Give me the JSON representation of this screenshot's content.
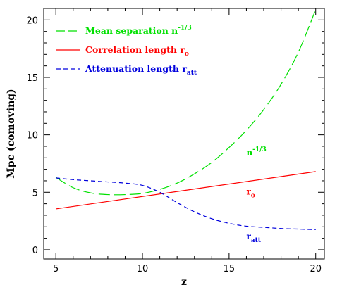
{
  "chart_data": {
    "type": "line",
    "title": "",
    "xlabel": "z",
    "ylabel": "Mpc (comoving)",
    "xlim": [
      4.3,
      20.5
    ],
    "ylim": [
      -0.8,
      21
    ],
    "x_ticks": [
      5,
      10,
      15,
      20
    ],
    "y_ticks": [
      0,
      5,
      10,
      15,
      20
    ],
    "grid": false,
    "legend_position": "top-left",
    "legend": [
      {
        "text": "Mean separation ",
        "sup": "-1/3",
        "prefix": "n",
        "series": 0
      },
      {
        "text": "Correlation length ",
        "prefix": "r",
        "sub": "o",
        "series": 1
      },
      {
        "text": "Attenuation length ",
        "prefix": "r",
        "sub": "att",
        "series": 2
      }
    ],
    "series": [
      {
        "name": "Mean separation n^-1/3",
        "color": "#00e000",
        "dash": "long-dash",
        "x": [
          5,
          6,
          7,
          8,
          9,
          10,
          11,
          12,
          13,
          14,
          15,
          16,
          17,
          18,
          19,
          20
        ],
        "y": [
          6.3,
          5.4,
          4.95,
          4.8,
          4.8,
          4.9,
          5.25,
          5.8,
          6.6,
          7.6,
          8.9,
          10.4,
          12.2,
          14.4,
          17.2,
          20.9
        ]
      },
      {
        "name": "Correlation length r_o",
        "color": "#ff0000",
        "dash": "solid",
        "x": [
          5,
          20
        ],
        "y": [
          3.55,
          6.8
        ]
      },
      {
        "name": "Attenuation length r_att",
        "color": "#0000dd",
        "dash": "short-dash",
        "x": [
          5,
          6,
          7,
          8,
          9,
          10,
          11,
          12,
          13,
          14,
          15,
          16,
          17,
          18,
          19,
          20
        ],
        "y": [
          6.25,
          6.1,
          6.0,
          5.9,
          5.8,
          5.6,
          5.0,
          4.1,
          3.3,
          2.7,
          2.3,
          2.05,
          1.95,
          1.85,
          1.8,
          1.75
        ]
      }
    ],
    "annotations": [
      {
        "prefix": "n",
        "sup": "-1/3",
        "x": 16,
        "y": 8.2,
        "color": "#00e000"
      },
      {
        "prefix": "r",
        "sub": "o",
        "x": 16,
        "y": 4.8,
        "color": "#ff0000"
      },
      {
        "prefix": "r",
        "sub": "att",
        "x": 16,
        "y": 0.9,
        "color": "#0000dd"
      }
    ]
  }
}
